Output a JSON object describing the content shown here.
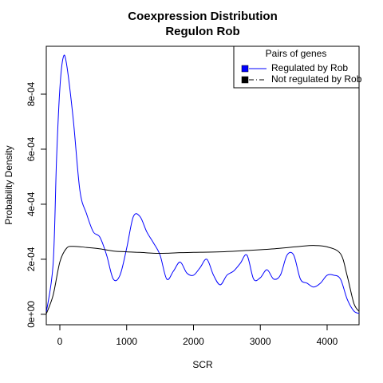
{
  "chart_data": {
    "type": "line",
    "title": [
      "Coexpression Distribution",
      "Regulon Rob"
    ],
    "xlabel": "SCR",
    "ylabel": "Probability Density",
    "legend_title": "Pairs of genes",
    "legend": "top-right",
    "xlim": [
      -203,
      4478
    ],
    "ylim": [
      -3.8e-05,
      0.000974
    ],
    "xticks": [
      0,
      1000,
      2000,
      3000,
      4000
    ],
    "yticks": [
      {
        "value": 0,
        "label": "0e+00"
      },
      {
        "value": 0.0002,
        "label": "2e-04"
      },
      {
        "value": 0.0004,
        "label": "4e-04"
      },
      {
        "value": 0.0006,
        "label": "6e-04"
      },
      {
        "value": 0.0008,
        "label": "8e-04"
      }
    ],
    "series": [
      {
        "name": "Regulated by  Rob",
        "color": "#0000ff",
        "legend_dash": "none",
        "x": [
          -200,
          -100,
          -50,
          0,
          50,
          100,
          200,
          300,
          400,
          500,
          600,
          700,
          800,
          900,
          1000,
          1100,
          1200,
          1300,
          1400,
          1500,
          1600,
          1700,
          1800,
          1900,
          2000,
          2100,
          2200,
          2300,
          2400,
          2500,
          2600,
          2700,
          2800,
          2900,
          3000,
          3100,
          3200,
          3300,
          3400,
          3500,
          3600,
          3700,
          3800,
          3900,
          4000,
          4100,
          4200,
          4300,
          4400,
          4480
        ],
        "values": [
          1e-05,
          0.000185,
          0.00056,
          0.00082,
          0.000933,
          0.00091,
          0.00071,
          0.00045,
          0.000365,
          0.0003,
          0.00028,
          0.000215,
          0.000128,
          0.000142,
          0.00024,
          0.000355,
          0.000355,
          0.0003,
          0.00026,
          0.000215,
          0.000128,
          0.000157,
          0.00019,
          0.00015,
          0.000142,
          0.00017,
          0.0002,
          0.000142,
          0.000107,
          0.000142,
          0.000157,
          0.000185,
          0.000215,
          0.000128,
          0.000133,
          0.000162,
          0.000128,
          0.000142,
          0.000215,
          0.000215,
          0.000128,
          0.000113,
          9.9e-05,
          0.000113,
          0.000142,
          0.000142,
          0.000128,
          5.5e-05,
          1.2e-05,
          3e-06
        ]
      },
      {
        "name": "Not regulated by  Rob",
        "color": "#000000",
        "legend_dash": "6 3 1 3",
        "x": [
          -200,
          -100,
          0,
          100,
          200,
          400,
          600,
          800,
          1000,
          1200,
          1400,
          1600,
          1800,
          2000,
          2400,
          2800,
          3200,
          3600,
          3800,
          4000,
          4200,
          4300,
          4400,
          4480
        ],
        "values": [
          3e-06,
          7e-05,
          0.00019,
          0.00024,
          0.000247,
          0.000243,
          0.000238,
          0.00023,
          0.000227,
          0.000225,
          0.000222,
          0.000222,
          0.000224,
          0.000225,
          0.000227,
          0.000232,
          0.000238,
          0.000247,
          0.00025,
          0.000245,
          0.00022,
          0.00014,
          4e-05,
          1e-05
        ]
      }
    ]
  }
}
